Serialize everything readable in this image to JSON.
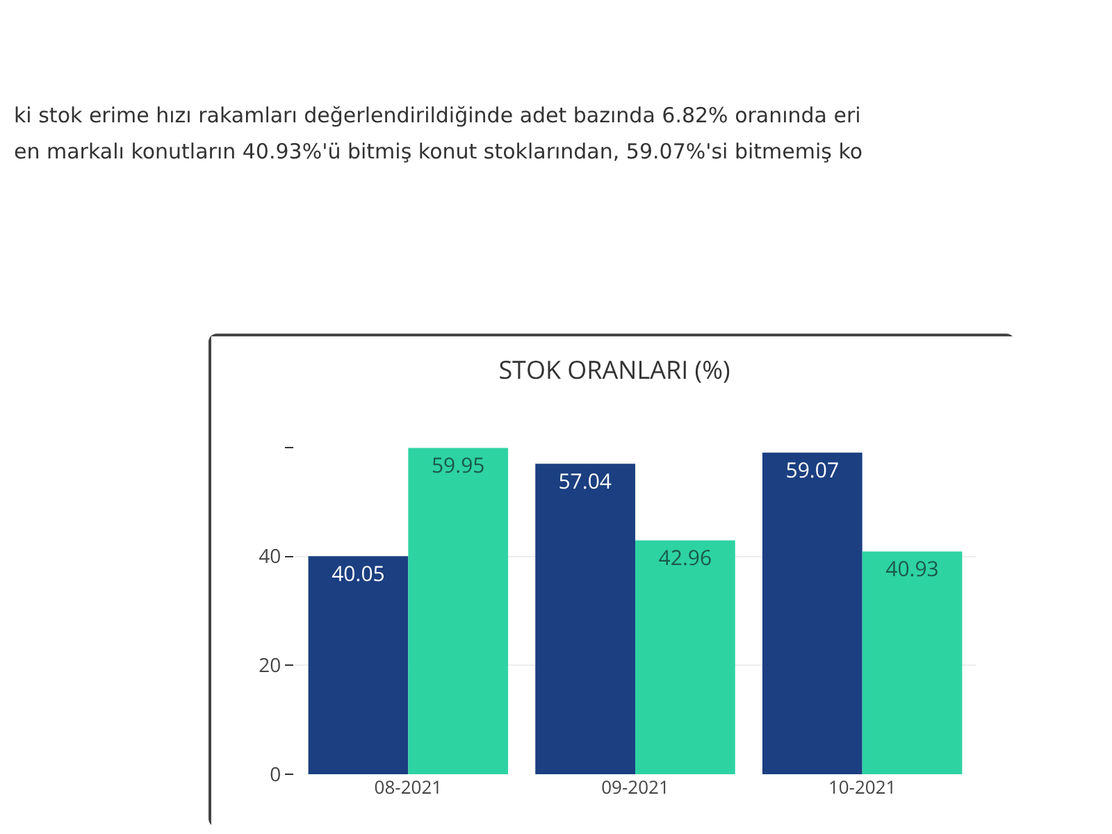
{
  "chart_data": {
    "type": "bar",
    "title": "STOK ORANLARI (%)",
    "annotations": [
      "ki stok erime hızı rakamları değerlendirildiğinde adet bazında 6.82% oranında eri",
      "en markalı konutların 40.93%'ü bitmiş konut stoklarından, 59.07%'si bitmemiş ko"
    ],
    "categories": [
      "08-2021",
      "09-2021",
      "10-2021"
    ],
    "series": [
      {
        "color": "#1b3f80",
        "values": [
          40.05,
          57.04,
          59.07
        ]
      },
      {
        "color": "#2ed3a2",
        "values": [
          59.95,
          42.96,
          40.93
        ]
      }
    ],
    "data_labels": true,
    "ylim": [
      0,
      60
    ],
    "yticks": [
      0,
      20,
      40,
      {
        "value": 60,
        "label": null
      }
    ],
    "grid": "y"
  }
}
